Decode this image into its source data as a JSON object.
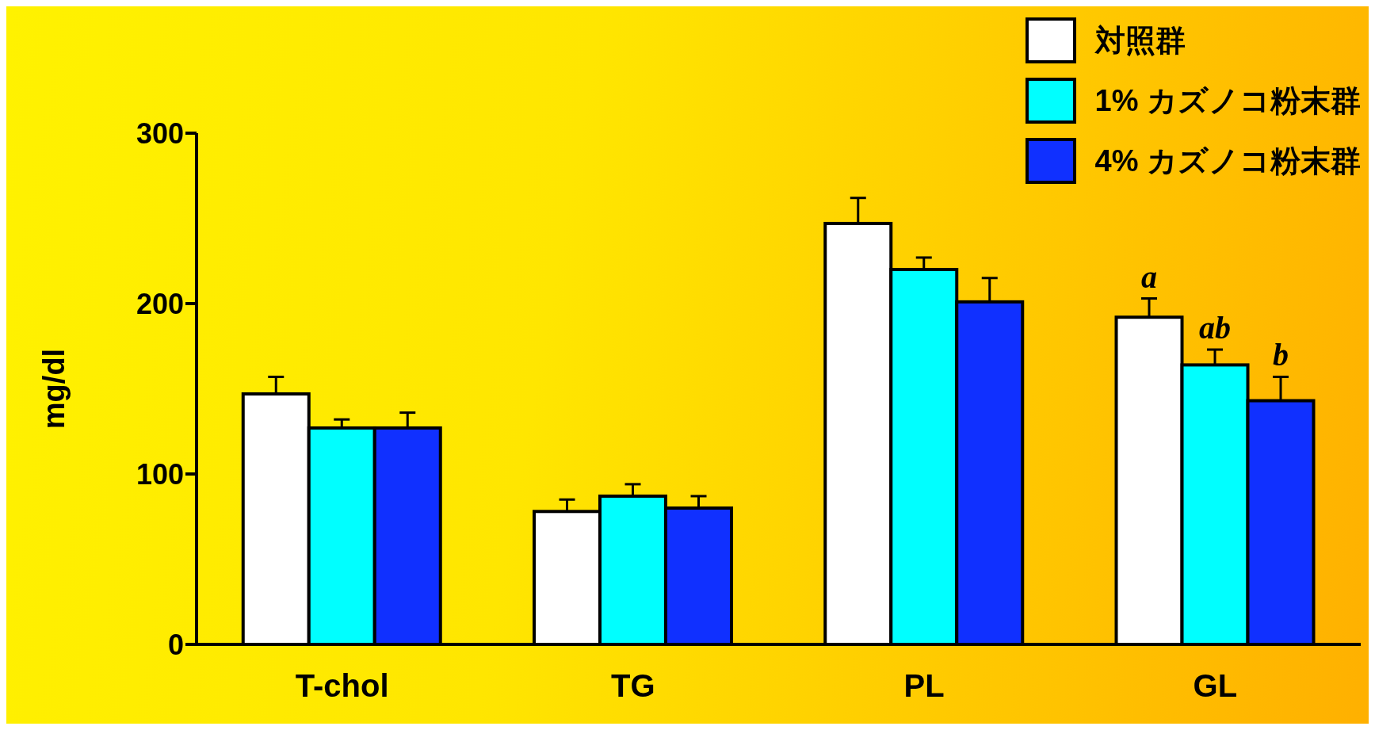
{
  "chart_data": {
    "type": "bar",
    "ylabel": "mg/dl",
    "categories": [
      "T-chol",
      "TG",
      "PL",
      "GL"
    ],
    "series": [
      {
        "name": "対照群",
        "color": "#ffffff",
        "values": [
          147,
          78,
          247,
          192
        ],
        "errors": [
          [
            147,
            157
          ],
          [
            78,
            85
          ],
          [
            247,
            262
          ],
          [
            192,
            203
          ]
        ]
      },
      {
        "name": "1% カズノコ粉末群",
        "color": "#00ffff",
        "values": [
          127,
          87,
          220,
          164
        ],
        "errors": [
          [
            127,
            132
          ],
          [
            87,
            94
          ],
          [
            220,
            227
          ],
          [
            164,
            173
          ]
        ]
      },
      {
        "name": "4% カズノコ粉末群",
        "color": "#1030ff",
        "values": [
          127,
          80,
          201,
          143
        ],
        "errors": [
          [
            127,
            136
          ],
          [
            80,
            87
          ],
          [
            201,
            215
          ],
          [
            143,
            157
          ]
        ]
      }
    ],
    "ylim": [
      0,
      300
    ],
    "yticks": [
      0,
      100,
      200,
      300
    ],
    "grid": false,
    "legend": "top right",
    "annotations": [
      "a",
      "ab",
      "b"
    ]
  }
}
